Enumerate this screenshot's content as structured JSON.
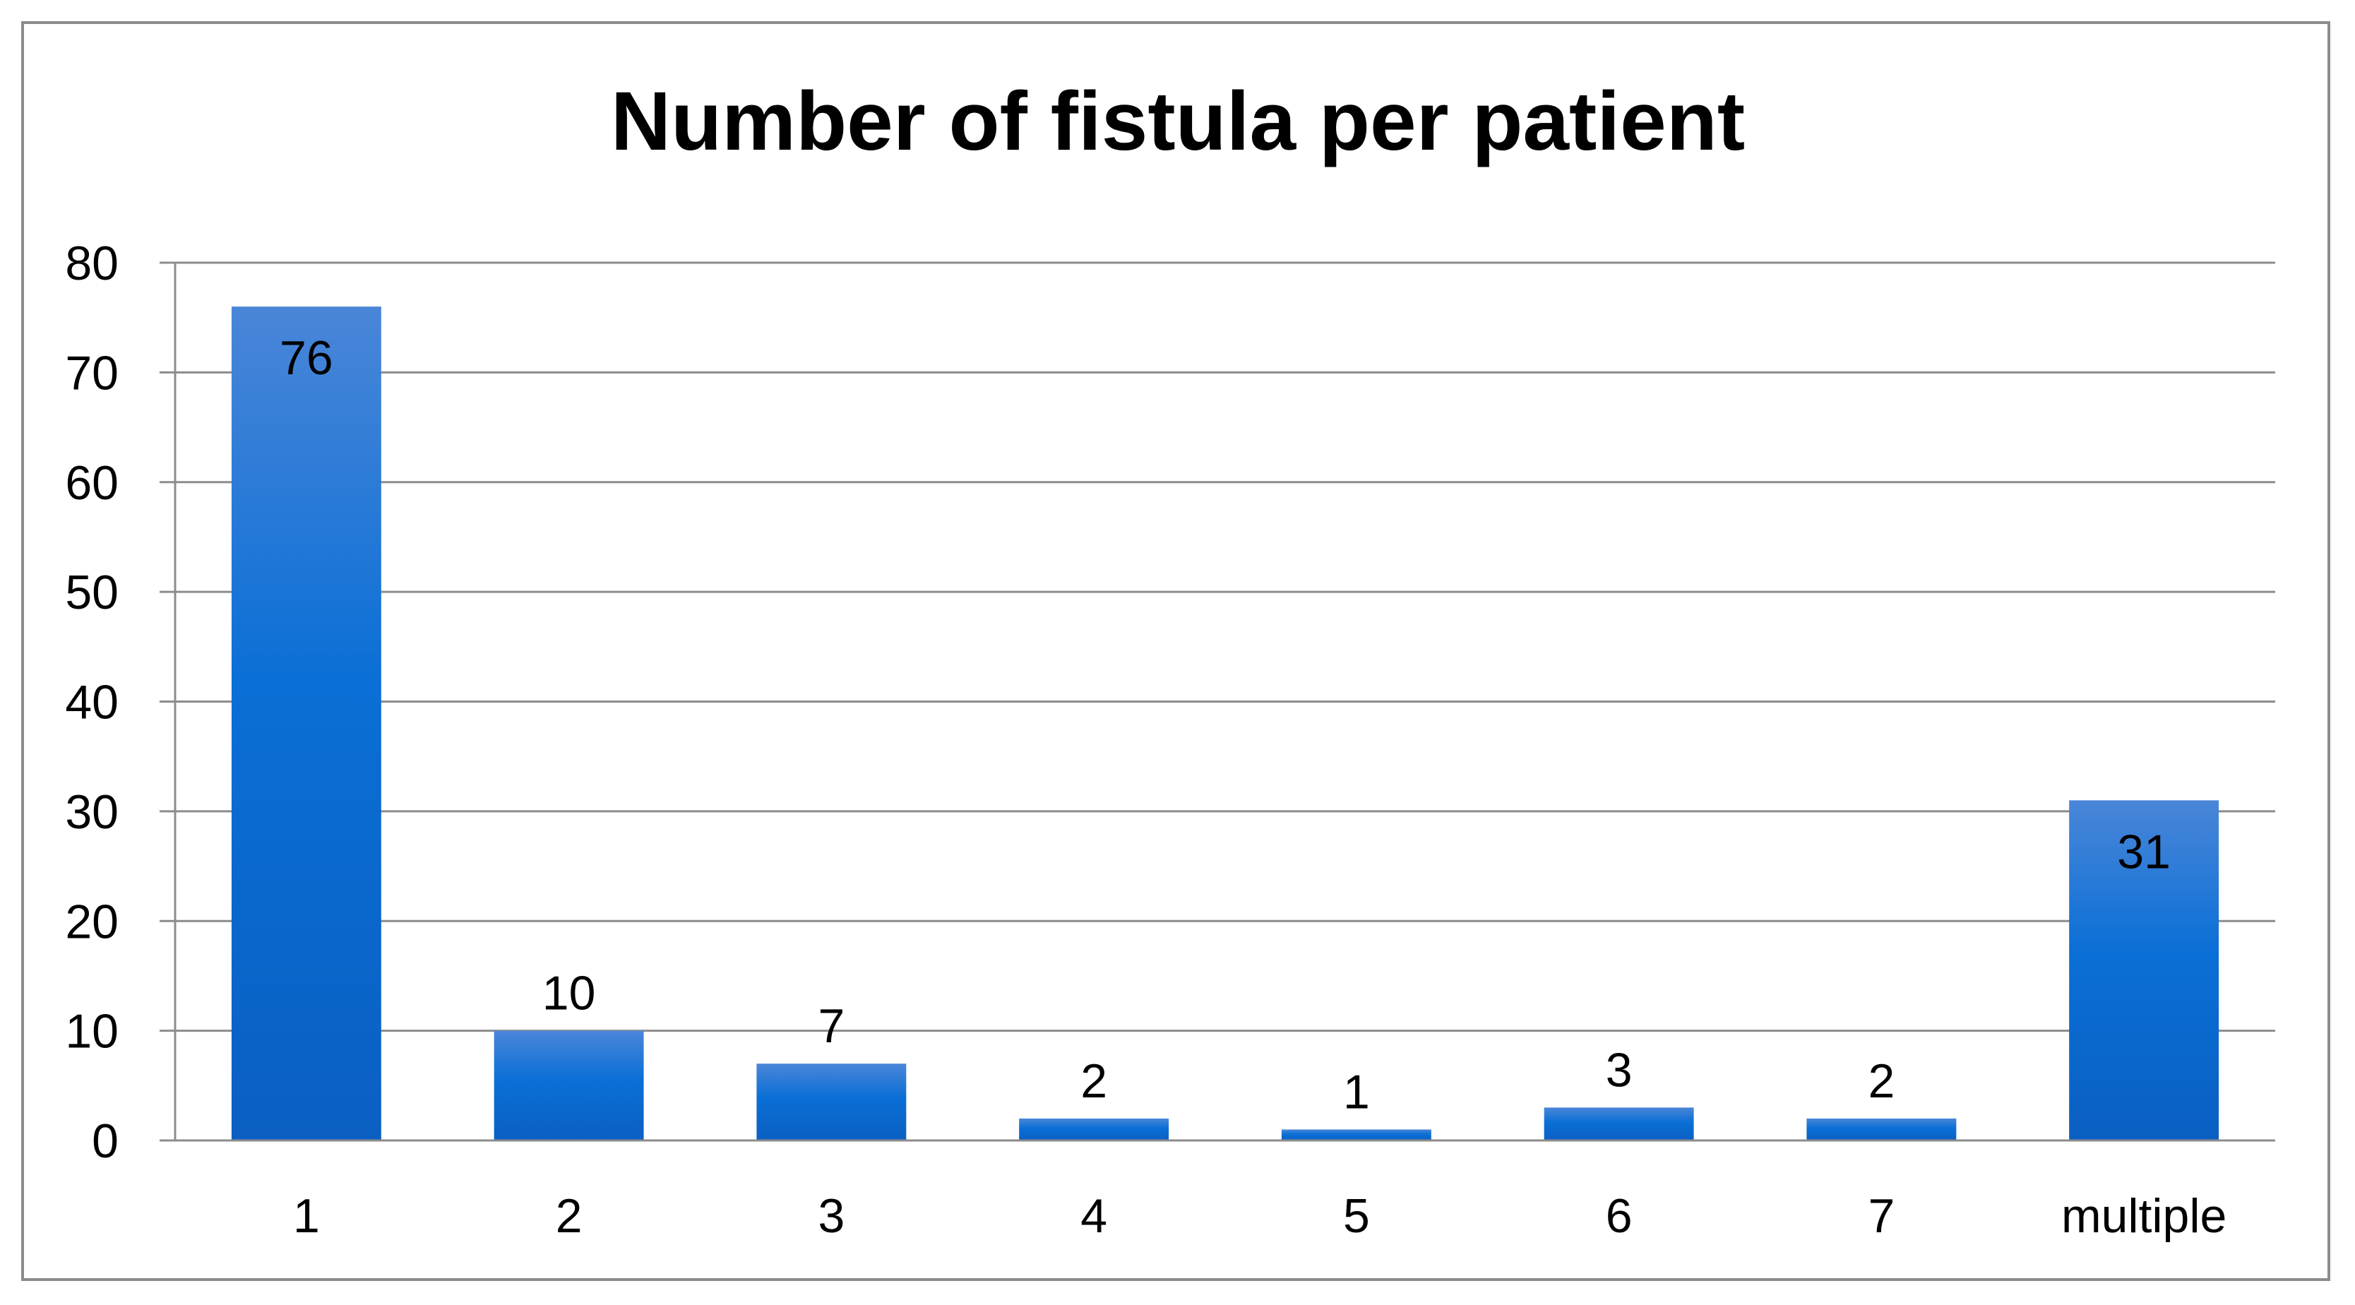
{
  "chart_data": {
    "type": "bar",
    "title": "Number of fistula per patient",
    "xlabel": "",
    "ylabel": "",
    "categories": [
      "1",
      "2",
      "3",
      "4",
      "5",
      "6",
      "7",
      "multiple"
    ],
    "values": [
      76,
      10,
      7,
      2,
      1,
      3,
      2,
      31
    ],
    "data_labels": [
      "76",
      "10",
      "7",
      "2",
      "1",
      "3",
      "2",
      "31"
    ],
    "ylim": [
      0,
      80
    ],
    "yticks": [
      0,
      10,
      20,
      30,
      40,
      50,
      60,
      70,
      80
    ],
    "ytick_labels": [
      "0",
      "10",
      "20",
      "30",
      "40",
      "50",
      "60",
      "70",
      "80"
    ],
    "grid": true,
    "legend": "none",
    "colors": {
      "bar_top": "#4a86d8",
      "bar_mid": "#0a6fd6",
      "bar_bottom": "#0b5fc2",
      "grid": "#8c8c8c",
      "axis": "#8c8c8c",
      "border": "#8c8c8c"
    }
  }
}
